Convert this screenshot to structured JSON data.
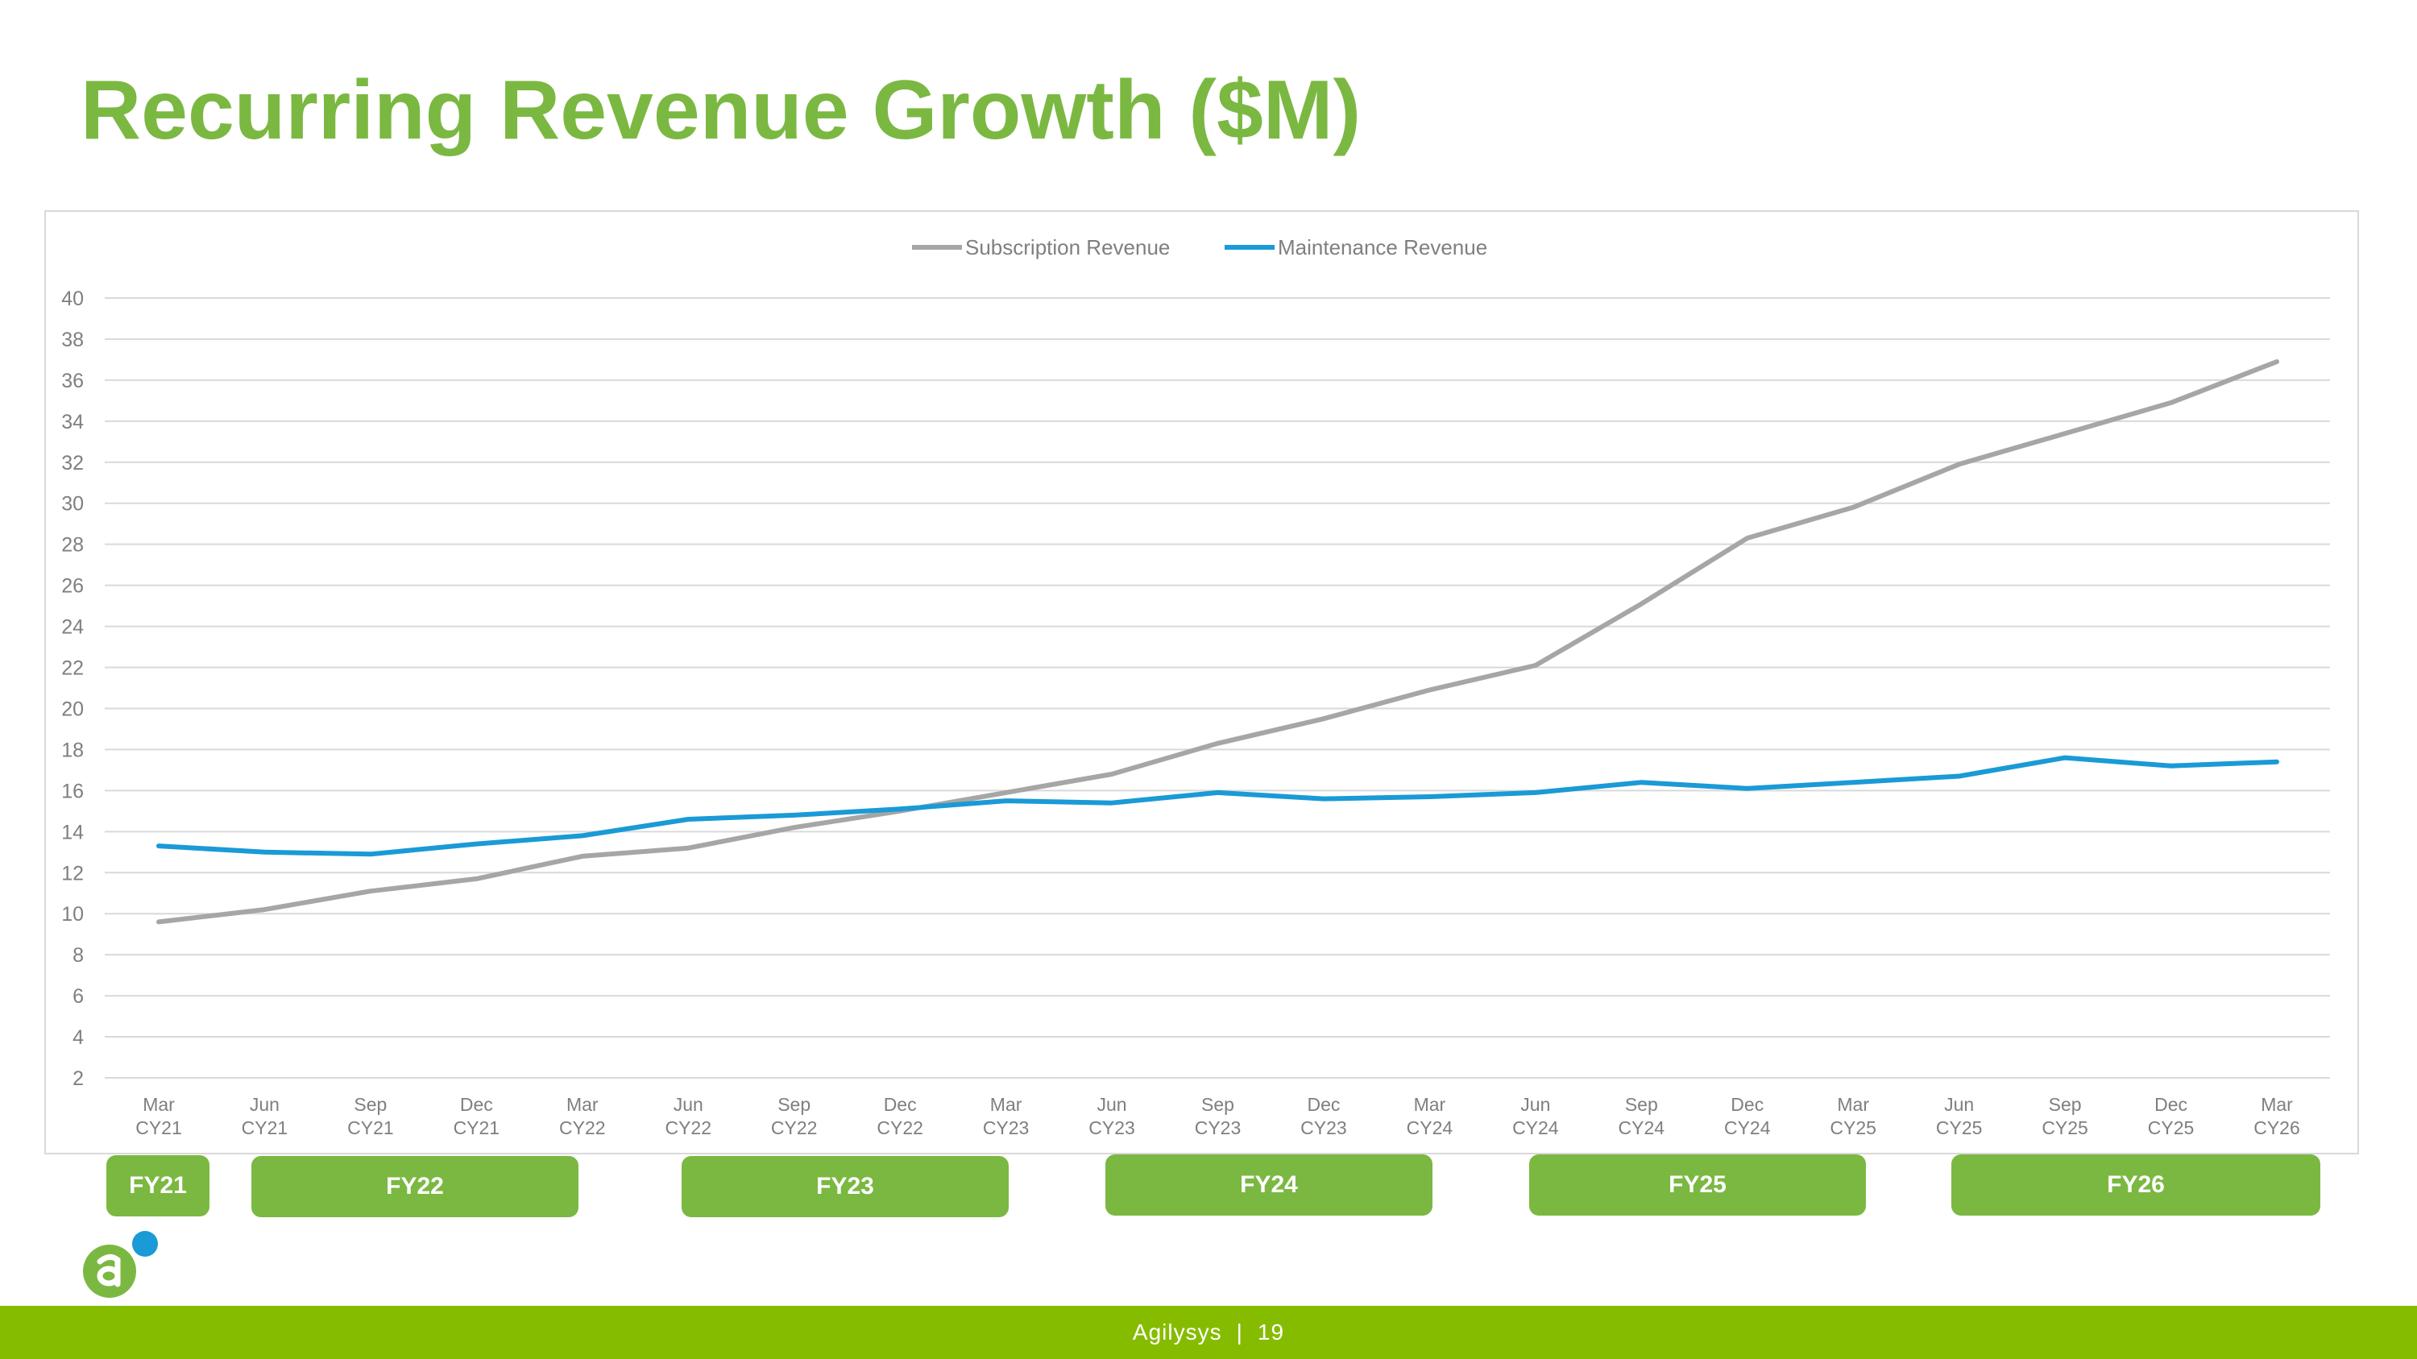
{
  "page": {
    "title": "Recurring Revenue Growth ($M)",
    "footer_company": "Agilysys",
    "footer_separator": "|",
    "footer_page": "19"
  },
  "colors": {
    "title": "#7bb842",
    "subscription": "#a6a6a6",
    "maintenance": "#1a9ad6",
    "fy_box": "#7bb842",
    "footer": "#86bc00",
    "grid": "#d9d9d9",
    "tick_text": "#7f7f7f"
  },
  "fiscal_years": [
    "FY21",
    "FY22",
    "FY23",
    "FY24",
    "FY25",
    "FY26"
  ],
  "chart_data": {
    "type": "line",
    "legend_position": "top",
    "grid": true,
    "ylim": [
      2,
      40
    ],
    "yticks": [
      2,
      4,
      6,
      8,
      10,
      12,
      14,
      16,
      18,
      20,
      22,
      24,
      26,
      28,
      30,
      32,
      34,
      36,
      38,
      40
    ],
    "categories": [
      [
        "Mar",
        "CY21"
      ],
      [
        "Jun",
        "CY21"
      ],
      [
        "Sep",
        "CY21"
      ],
      [
        "Dec",
        "CY21"
      ],
      [
        "Mar",
        "CY22"
      ],
      [
        "Jun",
        "CY22"
      ],
      [
        "Sep",
        "CY22"
      ],
      [
        "Dec",
        "CY22"
      ],
      [
        "Mar",
        "CY23"
      ],
      [
        "Jun",
        "CY23"
      ],
      [
        "Sep",
        "CY23"
      ],
      [
        "Dec",
        "CY23"
      ],
      [
        "Mar",
        "CY24"
      ],
      [
        "Jun",
        "CY24"
      ],
      [
        "Sep",
        "CY24"
      ],
      [
        "Dec",
        "CY24"
      ],
      [
        "Mar",
        "CY25"
      ],
      [
        "Jun",
        "CY25"
      ],
      [
        "Sep",
        "CY25"
      ],
      [
        "Dec",
        "CY25"
      ],
      [
        "Mar",
        "CY26"
      ]
    ],
    "series": [
      {
        "name": "Subscription Revenue",
        "color": "#a6a6a6",
        "values": [
          9.6,
          10.2,
          11.1,
          11.7,
          12.8,
          13.2,
          14.2,
          15.0,
          15.9,
          16.8,
          18.3,
          19.5,
          20.9,
          22.1,
          25.1,
          28.3,
          29.8,
          31.9,
          33.4,
          34.9,
          36.9
        ]
      },
      {
        "name": "Maintenance Revenue",
        "color": "#1a9ad6",
        "values": [
          13.3,
          13.0,
          12.9,
          13.4,
          13.8,
          14.6,
          14.8,
          15.1,
          15.5,
          15.4,
          15.9,
          15.6,
          15.7,
          15.9,
          16.4,
          16.1,
          16.4,
          16.7,
          17.6,
          17.2,
          17.4
        ]
      }
    ]
  }
}
